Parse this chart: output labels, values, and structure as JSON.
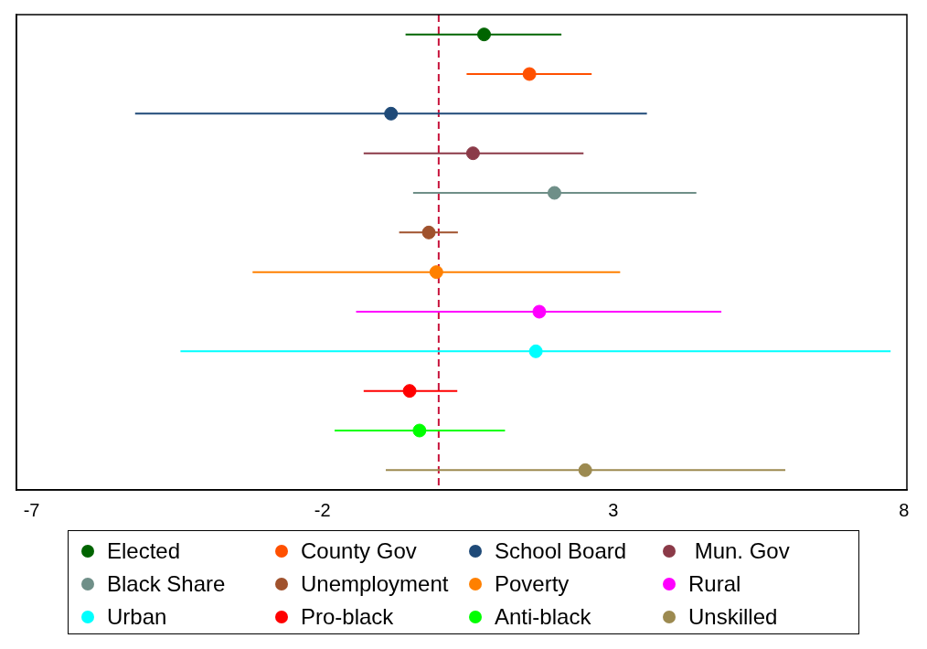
{
  "chart_data": {
    "type": "scatter",
    "orientation": "horizontal",
    "categories": [
      null,
      null,
      null,
      null,
      null,
      null,
      null,
      null,
      null,
      null,
      null,
      null
    ],
    "xlim": [
      -7.26,
      8.05
    ],
    "xticks": [
      -7,
      -2,
      3,
      8
    ],
    "grid": false,
    "legend": "bottom",
    "marker": "circle",
    "tick_labels": "x",
    "ref_lines": [
      {
        "axis": "x",
        "value": 0,
        "color": "#c8143c",
        "line_style": "dashed"
      }
    ],
    "series": [
      {
        "name": "Elected",
        "color": "#006400",
        "values": [
          0.78,
          null,
          null,
          null,
          null,
          null,
          null,
          null,
          null,
          null,
          null,
          null
        ],
        "errors": [
          [
            -0.57,
            2.11
          ],
          null,
          null,
          null,
          null,
          null,
          null,
          null,
          null,
          null,
          null,
          null
        ]
      },
      {
        "name": "County Gov",
        "color": "#ff5000",
        "values": [
          null,
          1.56,
          null,
          null,
          null,
          null,
          null,
          null,
          null,
          null,
          null,
          null
        ],
        "errors": [
          null,
          [
            0.48,
            2.63
          ],
          null,
          null,
          null,
          null,
          null,
          null,
          null,
          null,
          null,
          null
        ]
      },
      {
        "name": "School Board",
        "color": "#1f4a78",
        "values": [
          null,
          null,
          -0.82,
          null,
          null,
          null,
          null,
          null,
          null,
          null,
          null,
          null
        ],
        "errors": [
          null,
          null,
          [
            -5.22,
            3.58
          ],
          null,
          null,
          null,
          null,
          null,
          null,
          null,
          null,
          null
        ]
      },
      {
        "name": " Mun. Gov",
        "color": "#8b3a48",
        "values": [
          null,
          null,
          null,
          0.59,
          null,
          null,
          null,
          null,
          null,
          null,
          null,
          null
        ],
        "errors": [
          null,
          null,
          null,
          [
            -1.29,
            2.49
          ],
          null,
          null,
          null,
          null,
          null,
          null,
          null,
          null
        ]
      },
      {
        "name": "Black Share",
        "color": "#6f8f88",
        "values": [
          null,
          null,
          null,
          null,
          1.99,
          null,
          null,
          null,
          null,
          null,
          null,
          null
        ],
        "errors": [
          null,
          null,
          null,
          null,
          [
            -0.44,
            4.43
          ],
          null,
          null,
          null,
          null,
          null,
          null,
          null
        ]
      },
      {
        "name": "Unemployment",
        "color": "#a0522d",
        "values": [
          null,
          null,
          null,
          null,
          null,
          -0.17,
          null,
          null,
          null,
          null,
          null,
          null
        ],
        "errors": [
          null,
          null,
          null,
          null,
          null,
          [
            -0.68,
            0.33
          ],
          null,
          null,
          null,
          null,
          null,
          null
        ]
      },
      {
        "name": "Poverty",
        "color": "#ff8000",
        "values": [
          null,
          null,
          null,
          null,
          null,
          null,
          -0.04,
          null,
          null,
          null,
          null,
          null
        ],
        "errors": [
          null,
          null,
          null,
          null,
          null,
          null,
          [
            -3.2,
            3.12
          ],
          null,
          null,
          null,
          null,
          null
        ]
      },
      {
        "name": "Rural",
        "color": "#ff00ff",
        "values": [
          null,
          null,
          null,
          null,
          null,
          null,
          null,
          1.73,
          null,
          null,
          null,
          null
        ],
        "errors": [
          null,
          null,
          null,
          null,
          null,
          null,
          null,
          [
            -1.42,
            4.86
          ],
          null,
          null,
          null,
          null
        ]
      },
      {
        "name": "Urban",
        "color": "#00ffff",
        "values": [
          null,
          null,
          null,
          null,
          null,
          null,
          null,
          null,
          1.67,
          null,
          null,
          null
        ],
        "errors": [
          null,
          null,
          null,
          null,
          null,
          null,
          null,
          null,
          [
            -4.44,
            7.77
          ],
          null,
          null,
          null
        ]
      },
      {
        "name": "Pro-black",
        "color": "#ff0000",
        "values": [
          null,
          null,
          null,
          null,
          null,
          null,
          null,
          null,
          null,
          -0.5,
          null,
          null
        ],
        "errors": [
          null,
          null,
          null,
          null,
          null,
          null,
          null,
          null,
          null,
          [
            -1.29,
            0.32
          ],
          null,
          null
        ]
      },
      {
        "name": "Anti-black",
        "color": "#00ff00",
        "values": [
          null,
          null,
          null,
          null,
          null,
          null,
          null,
          null,
          null,
          null,
          -0.33,
          null
        ],
        "errors": [
          null,
          null,
          null,
          null,
          null,
          null,
          null,
          null,
          null,
          null,
          [
            -1.79,
            1.14
          ],
          null
        ]
      },
      {
        "name": "Unskilled",
        "color": "#9c8a50",
        "values": [
          null,
          null,
          null,
          null,
          null,
          null,
          null,
          null,
          null,
          null,
          null,
          2.52
        ],
        "errors": [
          null,
          null,
          null,
          null,
          null,
          null,
          null,
          null,
          null,
          null,
          null,
          [
            -0.91,
            5.96
          ]
        ]
      }
    ]
  }
}
